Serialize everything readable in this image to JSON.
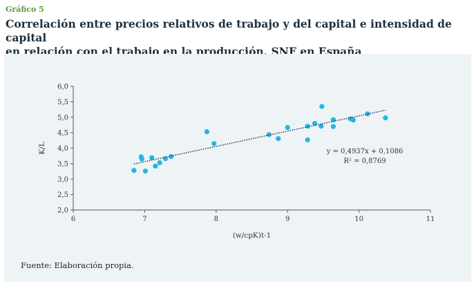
{
  "figure": {
    "label": "Gráfico 5",
    "title_line1": "Correlación entre precios relativos de trabajo y del capital e intensidad de capital",
    "title_line2": "en relación con el trabajo en la producción. SNF en España",
    "source": "Fuente: Elaboración propia."
  },
  "colors": {
    "label": "#5a9a3c",
    "title": "#1f2f3d",
    "panel_background": "#eef3f5",
    "marker": "#22b6e3",
    "trendline": "#1e3a5f",
    "axis": "#555555",
    "text": "#333333"
  },
  "chart_data": {
    "type": "scatter",
    "xlabel": "(w/cpK)t-1",
    "ylabel": "K/L",
    "xlim": [
      6,
      11
    ],
    "ylim": [
      2.0,
      6.0
    ],
    "x_ticks": [
      "6",
      "7",
      "8",
      "9",
      "10",
      "11"
    ],
    "y_ticks": [
      "2,0",
      "2,5",
      "3,0",
      "3,5",
      "4,0",
      "4,5",
      "5,0",
      "5,5",
      "6,0"
    ],
    "grid": false,
    "points": [
      {
        "x": 6.85,
        "y": 3.28
      },
      {
        "x": 6.95,
        "y": 3.72
      },
      {
        "x": 6.96,
        "y": 3.65
      },
      {
        "x": 7.01,
        "y": 3.26
      },
      {
        "x": 7.1,
        "y": 3.69
      },
      {
        "x": 7.15,
        "y": 3.42
      },
      {
        "x": 7.21,
        "y": 3.53
      },
      {
        "x": 7.29,
        "y": 3.66
      },
      {
        "x": 7.37,
        "y": 3.73
      },
      {
        "x": 7.87,
        "y": 4.53
      },
      {
        "x": 7.97,
        "y": 4.15
      },
      {
        "x": 8.74,
        "y": 4.44
      },
      {
        "x": 8.87,
        "y": 4.31
      },
      {
        "x": 9.0,
        "y": 4.67
      },
      {
        "x": 9.28,
        "y": 4.71
      },
      {
        "x": 9.28,
        "y": 4.27
      },
      {
        "x": 9.38,
        "y": 4.8
      },
      {
        "x": 9.47,
        "y": 4.71
      },
      {
        "x": 9.48,
        "y": 5.35
      },
      {
        "x": 9.64,
        "y": 4.92
      },
      {
        "x": 9.64,
        "y": 4.7
      },
      {
        "x": 9.88,
        "y": 4.95
      },
      {
        "x": 9.92,
        "y": 4.91
      },
      {
        "x": 10.12,
        "y": 5.11
      },
      {
        "x": 10.37,
        "y": 4.98
      }
    ],
    "trendline": {
      "type": "linear",
      "slope": 0.4937,
      "intercept": 0.1086,
      "x_range": [
        6.85,
        10.37
      ],
      "style": "dotted",
      "equation_label": "y = 0,4937x + 0,1086",
      "r2_label": "R² = 0,8769"
    }
  }
}
